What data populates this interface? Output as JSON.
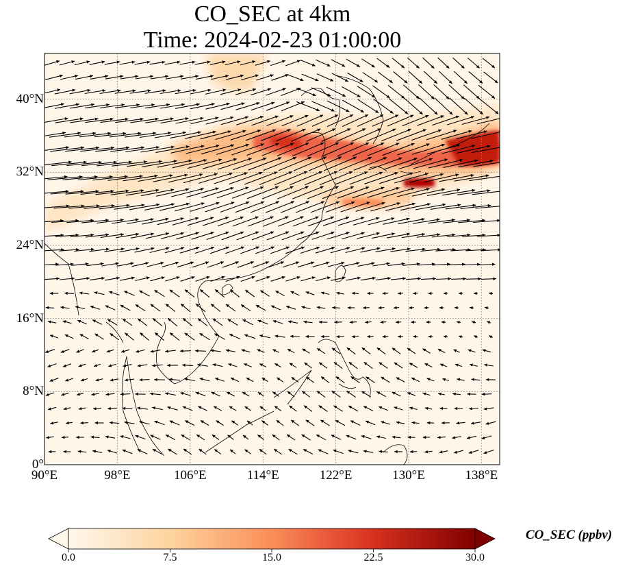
{
  "title": "CO_SEC at 4km",
  "subtitle": "Time: 2024-02-23 01:00:00",
  "x_ticks": [
    "90°E",
    "98°E",
    "106°E",
    "114°E",
    "122°E",
    "130°E",
    "138°E"
  ],
  "x_tick_values": [
    90,
    98,
    106,
    114,
    122,
    130,
    138
  ],
  "y_ticks": [
    "40°N",
    "32°N",
    "24°N",
    "16°N",
    "8°N",
    "0°"
  ],
  "y_tick_values": [
    40,
    32,
    24,
    16,
    8,
    0
  ],
  "extent": {
    "lon_min": 90,
    "lon_max": 140,
    "lat_min": 0,
    "lat_max": 45
  },
  "colorbar": {
    "label": "CO_SEC (ppbv)",
    "ticks": [
      "0.0",
      "7.5",
      "15.0",
      "22.5",
      "30.0"
    ],
    "range": [
      0,
      30
    ],
    "extend": "both",
    "colormap": "OrRd",
    "colors": [
      "#fff7ec",
      "#fdd49e",
      "#fc8d59",
      "#d7301f",
      "#7f0000"
    ]
  },
  "colors": {
    "frame": "#000000",
    "gridlines": "#888888",
    "coastline": "#000000",
    "vector": "#000000"
  }
}
